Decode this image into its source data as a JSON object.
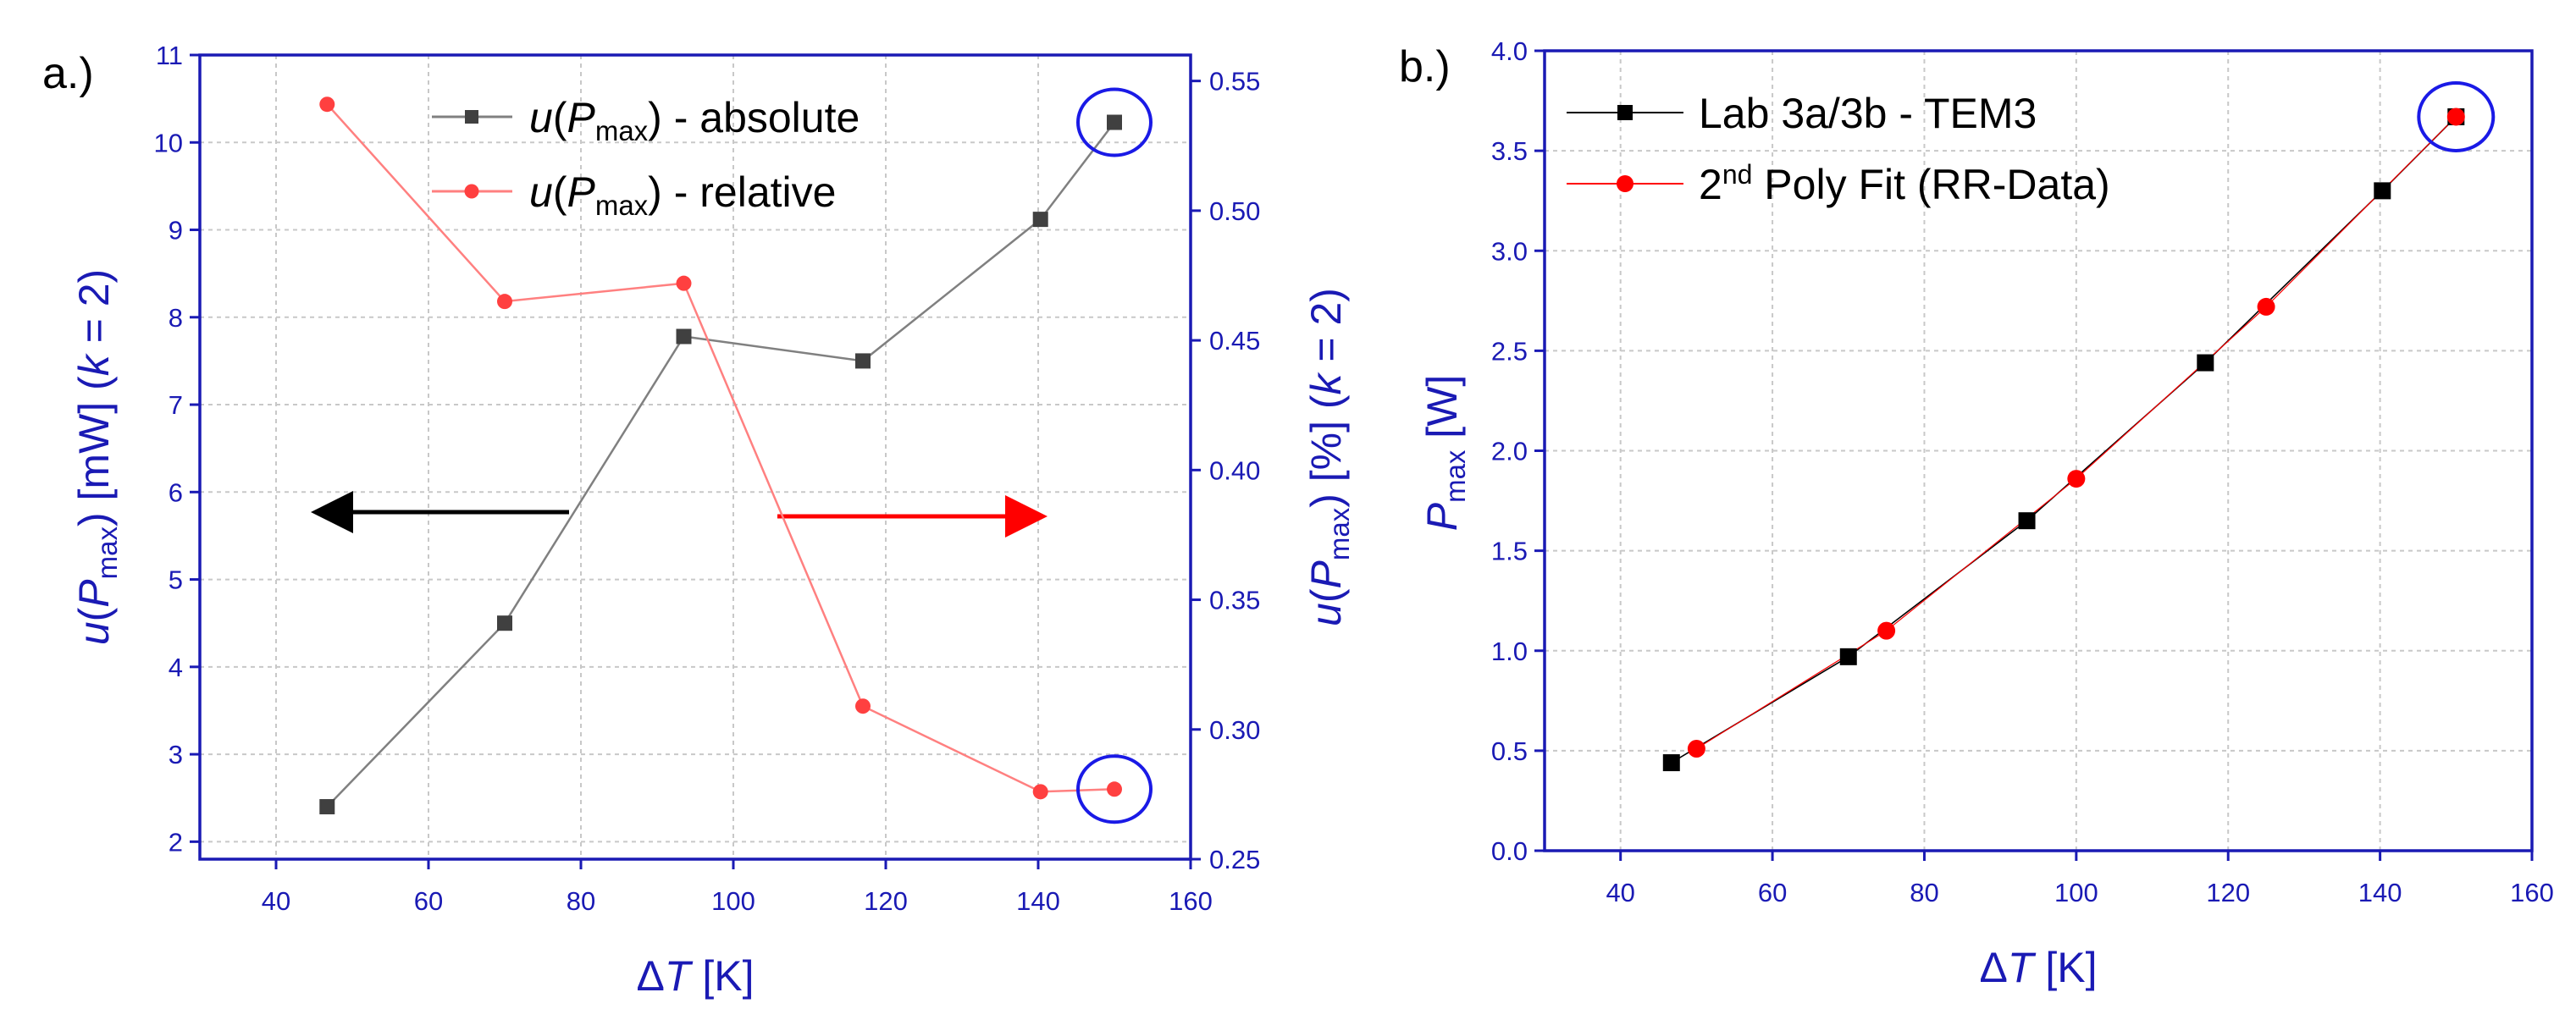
{
  "chart_data": [
    {
      "panel_label": "a.)",
      "type": "line",
      "x": [
        46.7,
        70,
        93.5,
        117,
        140.3,
        150
      ],
      "xlabel": "ΔT [K]",
      "xlim": [
        30,
        160
      ],
      "xticks": [
        40,
        60,
        80,
        100,
        120,
        140,
        160
      ],
      "ylabel_left": "u(Pmax) [mW] (k = 2)",
      "ylim_left": [
        1.8,
        11
      ],
      "yticks_left": [
        2,
        3,
        4,
        5,
        6,
        7,
        8,
        9,
        10,
        11
      ],
      "ylabel_right": "u(Pmax) [%] (k = 2)",
      "ylim_right": [
        0.25,
        0.56
      ],
      "yticks_right": [
        "0.25",
        "0.30",
        "0.35",
        "0.40",
        "0.45",
        "0.50",
        "0.55"
      ],
      "series": [
        {
          "name": "u(Pmax) - absolute",
          "axis": "left",
          "color": "#808080",
          "marker": "#404040",
          "marker_shape": "square",
          "values": [
            2.4,
            4.5,
            7.78,
            7.5,
            9.12,
            10.23
          ]
        },
        {
          "name": "u(Pmax) - relative",
          "axis": "right",
          "color": "#ff8080",
          "marker": "#ff4040",
          "marker_shape": "circle",
          "values": [
            0.541,
            0.465,
            0.472,
            0.309,
            0.276,
            0.277
          ]
        }
      ],
      "annotations": [
        {
          "type": "arrow",
          "direction": "left",
          "color": "#000000",
          "meaning": "absolute series uses left axis"
        },
        {
          "type": "arrow",
          "direction": "right",
          "color": "#ff0000",
          "meaning": "relative series uses right axis"
        },
        {
          "type": "circle",
          "color": "#1a1ae6",
          "x": 150,
          "axis": "left",
          "y": 10.23
        },
        {
          "type": "circle",
          "color": "#1a1ae6",
          "x": 150,
          "axis": "right",
          "y": 0.277
        }
      ],
      "legend_position": "top-center"
    },
    {
      "panel_label": "b.)",
      "type": "line",
      "xlabel": "ΔT [K]",
      "xlim": [
        30,
        160
      ],
      "xticks": [
        40,
        60,
        80,
        100,
        120,
        140,
        160
      ],
      "ylabel": "Pmax [W]",
      "ylim": [
        0,
        4
      ],
      "yticks": [
        "0.0",
        "0.5",
        "1.0",
        "1.5",
        "2.0",
        "2.5",
        "3.0",
        "3.5",
        "4.0"
      ],
      "series": [
        {
          "name": "Lab 3a/3b - TEM3",
          "color": "#000000",
          "marker": "#000000",
          "marker_shape": "square",
          "x": [
            46.7,
            70,
            93.5,
            117,
            140.3,
            150
          ],
          "values": [
            0.44,
            0.97,
            1.65,
            2.44,
            3.3,
            3.67
          ]
        },
        {
          "name": "2nd Poly Fit (RR-Data)",
          "color": "#ff0000",
          "marker": "#ff0000",
          "marker_shape": "circle",
          "x": [
            50,
            75,
            100,
            125,
            150
          ],
          "values": [
            0.51,
            1.1,
            1.86,
            2.72,
            3.67
          ]
        }
      ],
      "annotations": [
        {
          "type": "circle",
          "color": "#1a1ae6",
          "x": 150,
          "y": 3.67
        }
      ],
      "legend_position": "top-left"
    }
  ]
}
